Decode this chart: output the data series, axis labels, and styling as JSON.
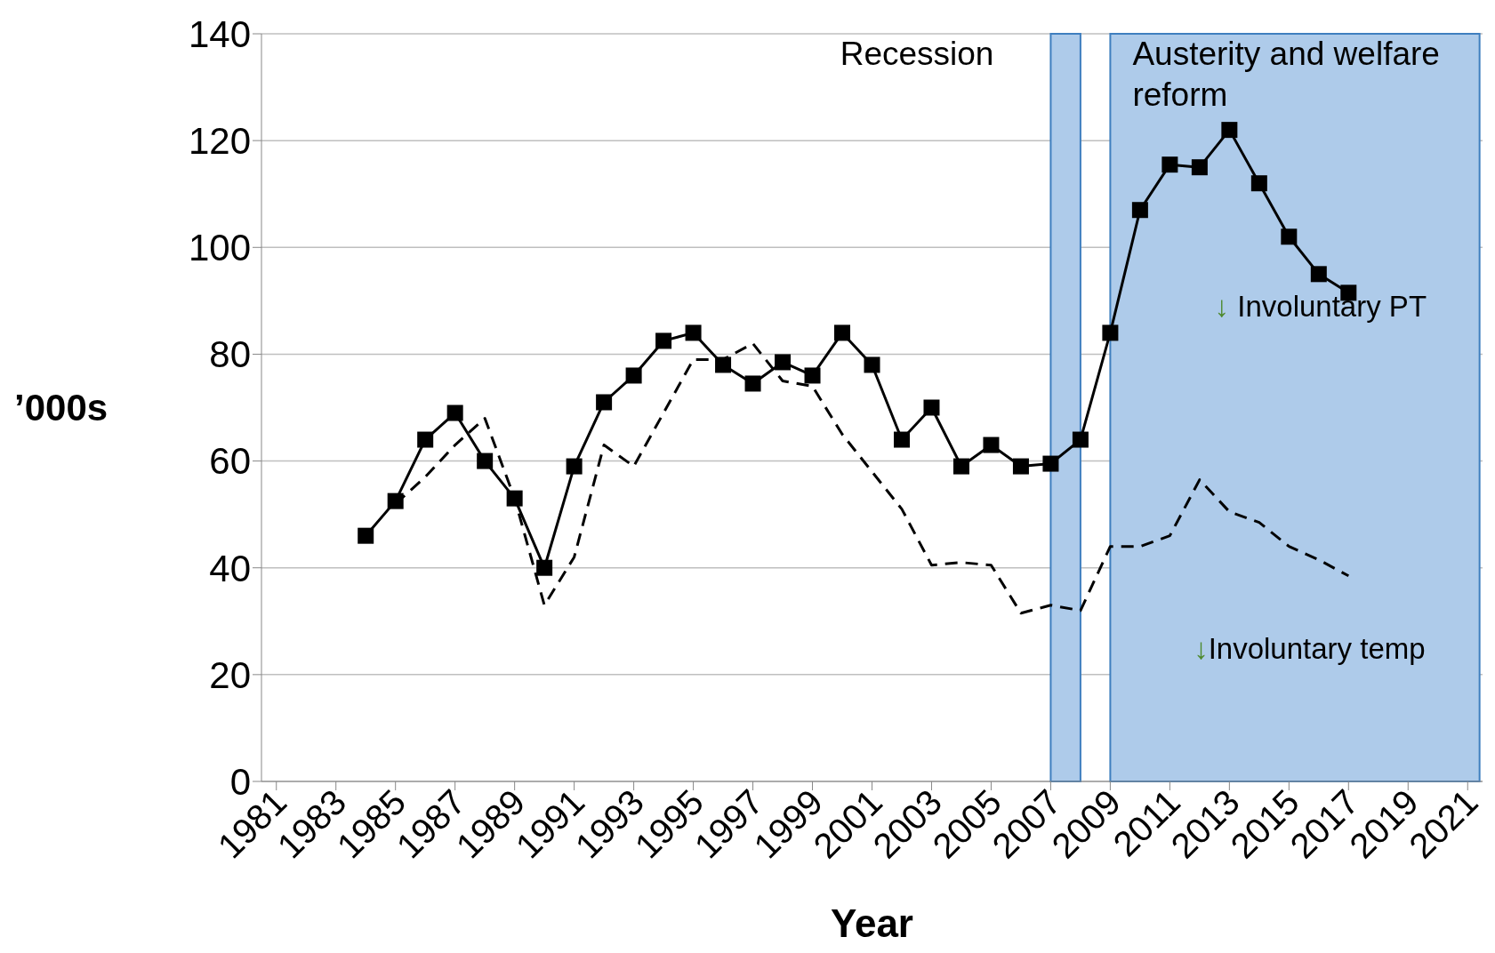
{
  "chart_data": {
    "type": "line",
    "xlabel": "Year",
    "ylabel": "’000s",
    "x": [
      1984,
      1985,
      1986,
      1987,
      1988,
      1989,
      1990,
      1991,
      1992,
      1993,
      1994,
      1995,
      1996,
      1997,
      1998,
      1999,
      2000,
      2001,
      2002,
      2003,
      2004,
      2005,
      2006,
      2007,
      2008,
      2009,
      2010,
      2011,
      2012,
      2013,
      2014,
      2015,
      2016,
      2017
    ],
    "series": [
      {
        "color": "#000000",
        "marker": "square",
        "line_style": "solid",
        "values": [
          46,
          52.5,
          64,
          69,
          60,
          53,
          40,
          59,
          71,
          76,
          82.5,
          84,
          78,
          74.5,
          78.5,
          76,
          84,
          78,
          64,
          70,
          59,
          63,
          59,
          59.5,
          64,
          84,
          107,
          115.5,
          115,
          122,
          112,
          102,
          95,
          91.5
        ]
      },
      {
        "color": "#000000",
        "marker": "none",
        "line_style": "dashed",
        "values": [
          null,
          52,
          57,
          63,
          68,
          53,
          33,
          42,
          63,
          59,
          69,
          79,
          79,
          82,
          75,
          74,
          65,
          58,
          51,
          40.5,
          41,
          40.5,
          31.5,
          33,
          32,
          44,
          44,
          46,
          56.5,
          50.5,
          48.5,
          44,
          41.5,
          38.5
        ]
      }
    ],
    "xlim": [
      1980.5,
      2021.5
    ],
    "xticks": [
      1981,
      1983,
      1985,
      1987,
      1989,
      1991,
      1993,
      1995,
      1997,
      1999,
      2001,
      2003,
      2005,
      2007,
      2009,
      2011,
      2013,
      2015,
      2017,
      2019,
      2021
    ],
    "ylim": [
      0,
      140
    ],
    "yticks": [
      0,
      20,
      40,
      60,
      80,
      100,
      120,
      140
    ],
    "grid": "y",
    "bands": [
      {
        "axis": "x",
        "from": 2007,
        "to": 2008,
        "label": "Recession",
        "color": "#aecbea"
      },
      {
        "axis": "x",
        "from": 2009,
        "to": 2021.4,
        "label": "Austerity and welfare reform",
        "color": "#aecbea"
      }
    ],
    "annotations": [
      "↓ Involuntary PT",
      "↓Involuntary temp"
    ]
  }
}
